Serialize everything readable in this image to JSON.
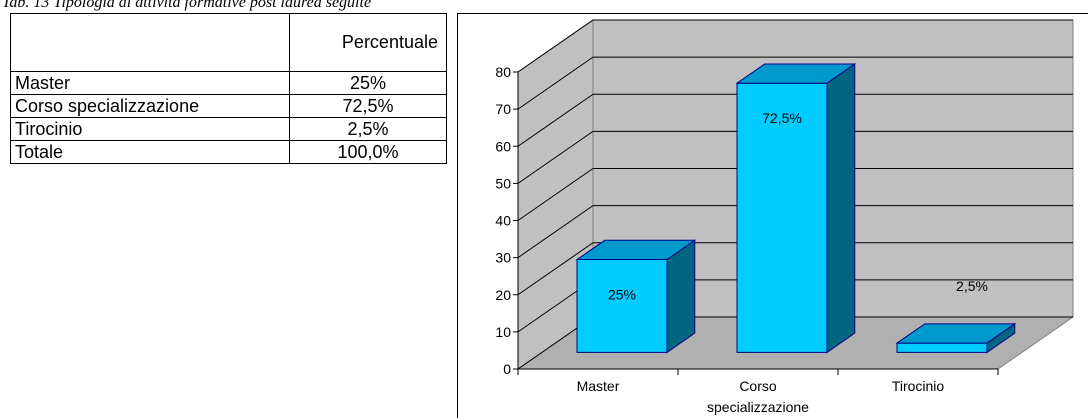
{
  "caption": "Tab. 13 Tipologia di attività formative post laurea seguite",
  "table": {
    "header": [
      "",
      "Percentuale"
    ],
    "rows": [
      [
        "Master",
        "25%"
      ],
      [
        "Corso specializzazione",
        "72,5%"
      ],
      [
        "Tirocinio",
        "2,5%"
      ],
      [
        "Totale",
        "100,0%"
      ]
    ]
  },
  "chart_data": {
    "type": "bar",
    "categories": [
      "Master",
      "Corso specializzazione",
      "Tirocinio"
    ],
    "values": [
      25,
      72.5,
      2.5
    ],
    "data_labels": [
      "25%",
      "72,5%",
      "2,5%"
    ],
    "ylim": [
      0,
      80
    ],
    "yticks": [
      0,
      10,
      20,
      30,
      40,
      50,
      60,
      70,
      80
    ],
    "grid": true,
    "legend": "none",
    "three_d": true,
    "colors": {
      "bar_front": "#00ccff",
      "bar_top": "#0099cc",
      "bar_side": "#006680",
      "bar_edge": "#000080",
      "wall": "#c0c0c0",
      "floor": "#b0b0b0"
    }
  }
}
